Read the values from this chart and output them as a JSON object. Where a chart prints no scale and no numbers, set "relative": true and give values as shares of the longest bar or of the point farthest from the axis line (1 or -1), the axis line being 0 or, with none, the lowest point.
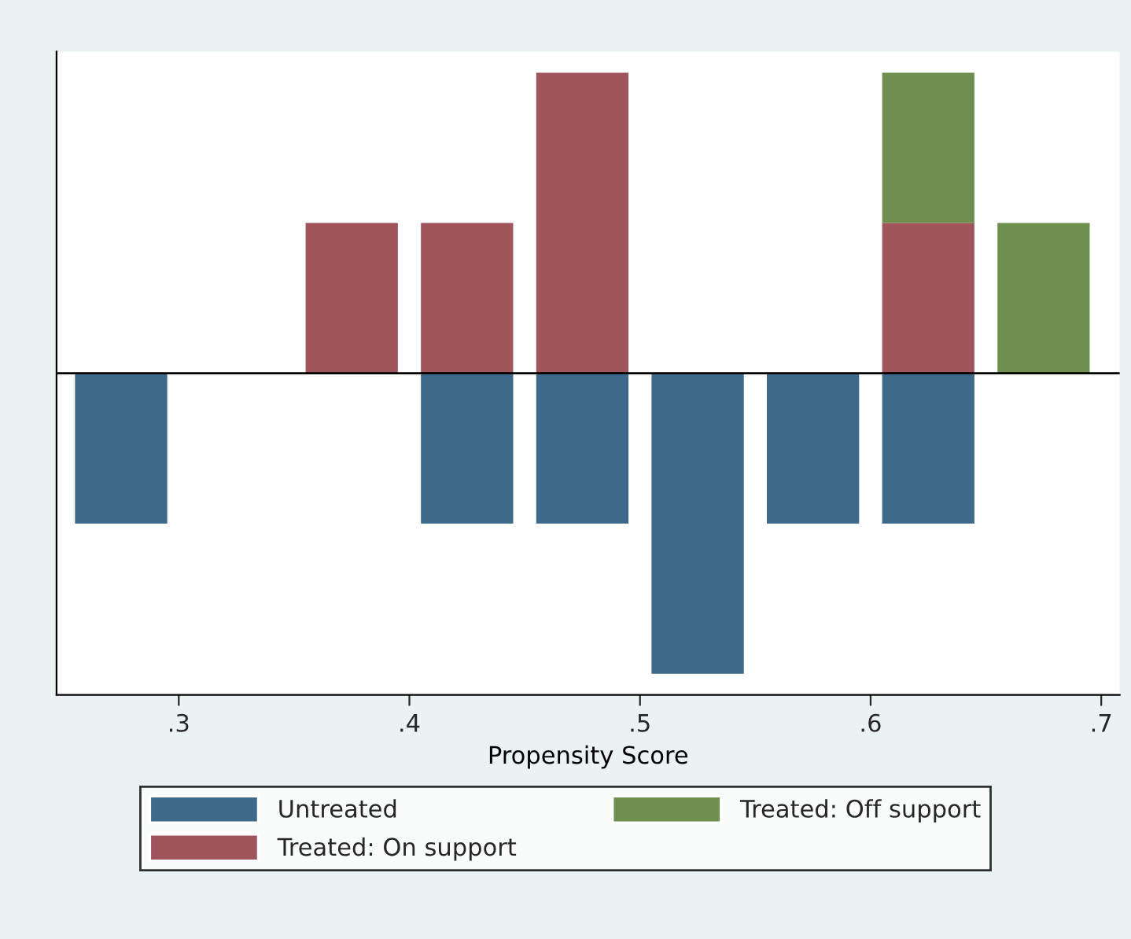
{
  "chart_data": {
    "type": "bar",
    "relative": true,
    "stacked": true,
    "xlabel": "Propensity Score",
    "x": [
      0.275,
      0.375,
      0.425,
      0.475,
      0.525,
      0.575,
      0.625,
      0.675
    ],
    "xlim": [
      0.247,
      0.708
    ],
    "xticks": [
      {
        "value": 0.3,
        "label": ".3"
      },
      {
        "value": 0.4,
        "label": ".4"
      },
      {
        "value": 0.5,
        "label": ".5"
      },
      {
        "value": 0.6,
        "label": ".6"
      },
      {
        "value": 0.7,
        "label": ".7"
      }
    ],
    "series": [
      {
        "name": "Untreated",
        "color": "#3d6a8a",
        "values": [
          -0.5,
          null,
          -0.5,
          -0.5,
          -1,
          -0.5,
          -0.5,
          null
        ]
      },
      {
        "name": "Treated: On support",
        "color": "#a0545c",
        "values": [
          null,
          0.5,
          0.5,
          1,
          null,
          null,
          0.5,
          null
        ]
      },
      {
        "name": "Treated: Off support",
        "color": "#6f8f50",
        "values": [
          null,
          null,
          null,
          null,
          null,
          null,
          0.5,
          0.5
        ]
      }
    ],
    "legend": "bottom",
    "grid": false
  }
}
